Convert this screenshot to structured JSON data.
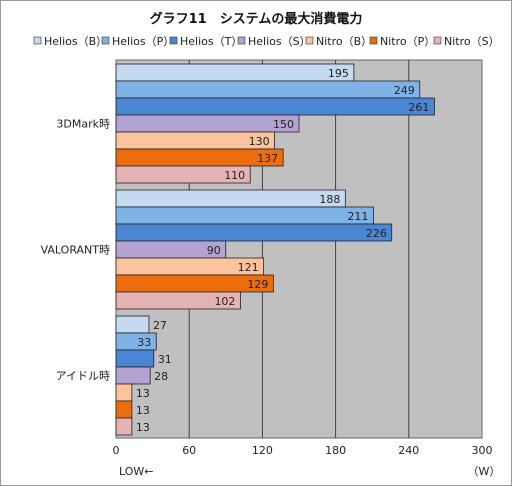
{
  "chart_data": {
    "type": "bar",
    "orientation": "horizontal",
    "title": "グラフ11　システムの最大消費電力",
    "categories": [
      "3DMark時",
      "VALORANT時",
      "アイドル時"
    ],
    "series": [
      {
        "name": "Helios（B）",
        "color": "#c5d9f1",
        "values": [
          195,
          188,
          27
        ]
      },
      {
        "name": "Helios（P）",
        "color": "#7fb2e5",
        "values": [
          249,
          211,
          33
        ]
      },
      {
        "name": "Helios（T）",
        "color": "#4a86d4",
        "values": [
          261,
          226,
          31
        ]
      },
      {
        "name": "Helios（S）",
        "color": "#b3a2d2",
        "values": [
          150,
          90,
          28
        ]
      },
      {
        "name": "Nitro（B）",
        "color": "#fbc49c",
        "values": [
          130,
          121,
          13
        ]
      },
      {
        "name": "Nitro（P）",
        "color": "#ec6d0d",
        "values": [
          137,
          129,
          13
        ]
      },
      {
        "name": "Nitro（S）",
        "color": "#e6b3b4",
        "values": [
          110,
          102,
          13
        ]
      }
    ],
    "xlim": [
      0,
      300
    ],
    "xticks": [
      0,
      60,
      120,
      180,
      240,
      300
    ],
    "xlabel_left": "LOW←",
    "xlabel_right": "（W）",
    "grid": true,
    "legend_position": "top",
    "plot_background": "#c0c0c0"
  }
}
